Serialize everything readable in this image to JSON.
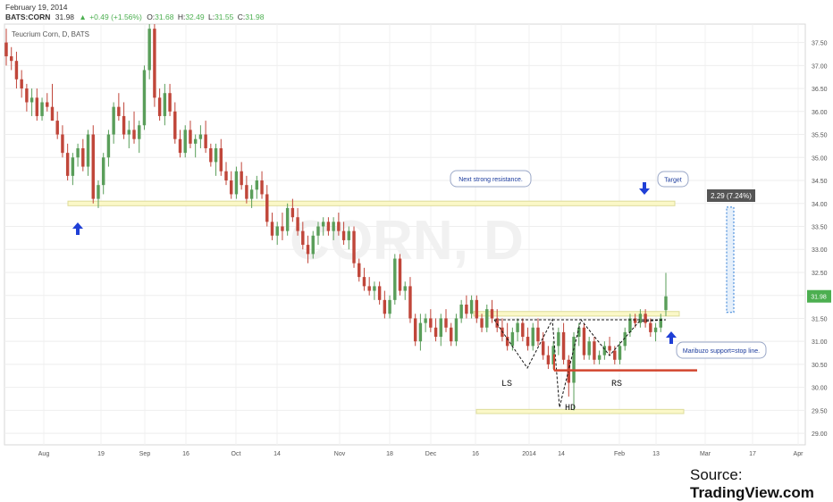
{
  "header": {
    "date": "February 19, 2014",
    "symbol": "BATS:CORN",
    "price": "31.98",
    "change_arrow": "▲",
    "change": "+0.49 (+1.56%)",
    "o_label": "O:",
    "o": "31.68",
    "h_label": "H:",
    "h": "32.49",
    "l_label": "L:",
    "l": "31.55",
    "c_label": "C:",
    "c": "31.98",
    "title": "Teucrium Corn, D, BATS"
  },
  "source": {
    "prefix": "Source: ",
    "brand": "TradingView.com"
  },
  "annotations": {
    "resistance_callout": "Next strong resistance.",
    "target_callout": "Target",
    "support_callout": "Maribuzo support=stop line.",
    "ls": "LS",
    "hd": "HD",
    "rs": "RS",
    "measure": "2.29 (7.24%)",
    "last_price": "31.98"
  },
  "colors": {
    "up": "#5a9e5a",
    "down": "#c0463a",
    "zone_fill": "#fbf8c8",
    "zone_stroke": "#dedc9a",
    "arrow": "#1f3fd6",
    "stop_line": "#d2462f",
    "measure": "#2a7ad6",
    "price_tag": "#4caf50"
  },
  "chart_data": {
    "type": "candlestick",
    "title": "Teucrium Corn, D, BATS",
    "ylim": [
      28.75,
      37.9
    ],
    "y_ticks": [
      "29.00",
      "29.50",
      "30.00",
      "30.50",
      "31.00",
      "31.50",
      "32.00",
      "32.50",
      "33.00",
      "33.50",
      "34.00",
      "34.50",
      "35.00",
      "35.50",
      "36.00",
      "36.50",
      "37.00",
      "37.50"
    ],
    "x_ticks": [
      "Aug",
      "19",
      "Sep",
      "16",
      "Oct",
      "14",
      "Nov",
      "18",
      "Dec",
      "16",
      "2014",
      "14",
      "Feb",
      "13",
      "Mar",
      "17",
      "Apr"
    ],
    "grid": true,
    "last_price": 31.98,
    "ohlc": [
      [
        37.5,
        37.8,
        37.0,
        37.2
      ],
      [
        37.2,
        37.4,
        36.9,
        37.1
      ],
      [
        37.1,
        37.3,
        36.5,
        36.7
      ],
      [
        36.7,
        36.9,
        36.3,
        36.5
      ],
      [
        36.5,
        36.6,
        36.0,
        36.2
      ],
      [
        36.2,
        36.5,
        35.9,
        36.3
      ],
      [
        36.3,
        36.5,
        35.8,
        35.9
      ],
      [
        35.9,
        36.3,
        35.8,
        36.2
      ],
      [
        36.2,
        36.4,
        36.0,
        36.1
      ],
      [
        36.1,
        36.6,
        35.8,
        35.8
      ],
      [
        35.8,
        36.0,
        35.4,
        35.5
      ],
      [
        35.5,
        35.7,
        35.0,
        35.1
      ],
      [
        35.1,
        35.3,
        34.5,
        34.6
      ],
      [
        34.6,
        35.1,
        34.4,
        35.0
      ],
      [
        35.0,
        35.3,
        34.8,
        35.2
      ],
      [
        35.2,
        35.4,
        34.7,
        34.8
      ],
      [
        34.8,
        35.6,
        34.6,
        35.5
      ],
      [
        35.5,
        35.7,
        34.0,
        34.1
      ],
      [
        34.1,
        34.5,
        33.9,
        34.4
      ],
      [
        34.4,
        35.1,
        34.2,
        35.0
      ],
      [
        35.0,
        35.6,
        34.8,
        35.5
      ],
      [
        35.5,
        36.2,
        35.3,
        36.1
      ],
      [
        36.1,
        36.4,
        35.8,
        35.9
      ],
      [
        35.9,
        36.2,
        35.4,
        35.5
      ],
      [
        35.5,
        35.8,
        35.2,
        35.6
      ],
      [
        35.6,
        36.0,
        35.3,
        35.4
      ],
      [
        35.4,
        35.8,
        35.1,
        35.7
      ],
      [
        35.7,
        37.0,
        35.6,
        36.9
      ],
      [
        36.9,
        37.9,
        36.7,
        37.8
      ],
      [
        37.8,
        37.9,
        36.1,
        36.3
      ],
      [
        36.3,
        36.5,
        35.8,
        35.9
      ],
      [
        35.9,
        36.6,
        35.7,
        36.4
      ],
      [
        36.4,
        36.6,
        35.9,
        36.0
      ],
      [
        36.0,
        36.2,
        35.3,
        35.4
      ],
      [
        35.4,
        35.6,
        35.0,
        35.1
      ],
      [
        35.1,
        35.7,
        35.0,
        35.6
      ],
      [
        35.6,
        35.8,
        35.2,
        35.3
      ],
      [
        35.3,
        35.5,
        35.0,
        35.4
      ],
      [
        35.4,
        35.7,
        35.2,
        35.5
      ],
      [
        35.5,
        35.8,
        35.1,
        35.2
      ],
      [
        35.2,
        35.3,
        34.8,
        34.9
      ],
      [
        34.9,
        35.3,
        34.6,
        35.2
      ],
      [
        35.2,
        35.4,
        34.6,
        34.7
      ],
      [
        34.7,
        34.9,
        34.4,
        34.5
      ],
      [
        34.5,
        34.7,
        34.1,
        34.2
      ],
      [
        34.2,
        34.8,
        34.1,
        34.7
      ],
      [
        34.7,
        34.9,
        34.3,
        34.4
      ],
      [
        34.4,
        34.6,
        34.0,
        34.1
      ],
      [
        34.1,
        34.4,
        33.9,
        34.3
      ],
      [
        34.3,
        34.6,
        34.1,
        34.5
      ],
      [
        34.5,
        34.7,
        34.1,
        34.2
      ],
      [
        34.2,
        34.4,
        33.5,
        33.6
      ],
      [
        33.6,
        33.8,
        33.2,
        33.3
      ],
      [
        33.3,
        33.6,
        33.1,
        33.5
      ],
      [
        33.5,
        33.8,
        33.2,
        33.4
      ],
      [
        33.4,
        34.0,
        33.3,
        33.9
      ],
      [
        33.9,
        34.1,
        33.6,
        33.7
      ],
      [
        33.7,
        33.9,
        33.3,
        33.4
      ],
      [
        33.4,
        33.6,
        33.0,
        33.1
      ],
      [
        33.1,
        33.3,
        32.7,
        32.9
      ],
      [
        32.9,
        33.4,
        32.8,
        33.3
      ],
      [
        33.3,
        33.6,
        33.1,
        33.5
      ],
      [
        33.5,
        33.7,
        33.3,
        33.6
      ],
      [
        33.6,
        33.7,
        33.3,
        33.4
      ],
      [
        33.4,
        33.7,
        33.2,
        33.6
      ],
      [
        33.6,
        33.8,
        33.3,
        33.4
      ],
      [
        33.4,
        33.6,
        33.1,
        33.2
      ],
      [
        33.2,
        33.5,
        33.0,
        33.4
      ],
      [
        33.4,
        33.5,
        32.6,
        32.7
      ],
      [
        32.7,
        32.8,
        32.3,
        32.4
      ],
      [
        32.4,
        32.6,
        32.1,
        32.2
      ],
      [
        32.2,
        32.4,
        32.0,
        32.1
      ],
      [
        32.1,
        32.3,
        31.9,
        32.2
      ],
      [
        32.2,
        32.3,
        31.8,
        31.9
      ],
      [
        31.9,
        32.1,
        31.5,
        31.6
      ],
      [
        31.6,
        32.0,
        31.5,
        31.9
      ],
      [
        31.9,
        32.9,
        31.8,
        32.8
      ],
      [
        32.8,
        32.9,
        32.0,
        32.1
      ],
      [
        32.1,
        32.3,
        31.9,
        32.2
      ],
      [
        32.2,
        32.4,
        31.4,
        31.5
      ],
      [
        31.5,
        31.6,
        30.9,
        31.0
      ],
      [
        31.0,
        31.6,
        30.8,
        31.4
      ],
      [
        31.4,
        31.6,
        31.2,
        31.5
      ],
      [
        31.5,
        31.7,
        31.2,
        31.3
      ],
      [
        31.3,
        31.5,
        31.0,
        31.1
      ],
      [
        31.1,
        31.6,
        30.9,
        31.5
      ],
      [
        31.5,
        31.7,
        31.2,
        31.3
      ],
      [
        31.3,
        31.4,
        30.9,
        31.0
      ],
      [
        31.0,
        31.6,
        30.9,
        31.5
      ],
      [
        31.5,
        31.9,
        31.4,
        31.8
      ],
      [
        31.8,
        32.0,
        31.5,
        31.6
      ],
      [
        31.6,
        32.0,
        31.5,
        31.9
      ],
      [
        31.9,
        32.0,
        31.4,
        31.5
      ],
      [
        31.5,
        31.6,
        31.2,
        31.3
      ],
      [
        31.3,
        31.8,
        31.2,
        31.7
      ],
      [
        31.7,
        31.9,
        31.4,
        31.5
      ],
      [
        31.5,
        31.7,
        31.2,
        31.3
      ],
      [
        31.3,
        31.5,
        31.0,
        31.1
      ],
      [
        31.1,
        31.4,
        30.8,
        30.9
      ],
      [
        30.9,
        31.3,
        30.8,
        31.2
      ],
      [
        31.2,
        31.5,
        31.0,
        31.4
      ],
      [
        31.4,
        31.5,
        31.0,
        31.1
      ],
      [
        31.1,
        31.3,
        30.8,
        30.9
      ],
      [
        30.9,
        31.4,
        30.8,
        31.3
      ],
      [
        31.3,
        31.5,
        30.9,
        31.0
      ],
      [
        31.0,
        31.2,
        30.6,
        30.7
      ],
      [
        30.7,
        30.9,
        30.4,
        30.5
      ],
      [
        30.5,
        31.0,
        30.4,
        30.9
      ],
      [
        30.9,
        31.3,
        30.7,
        31.2
      ],
      [
        31.2,
        31.4,
        30.5,
        30.6
      ],
      [
        30.6,
        30.7,
        29.8,
        30.1
      ],
      [
        30.1,
        31.2,
        29.5,
        31.1
      ],
      [
        31.1,
        31.4,
        30.9,
        31.3
      ],
      [
        31.3,
        31.4,
        30.6,
        30.7
      ],
      [
        30.7,
        31.1,
        30.6,
        31.0
      ],
      [
        31.0,
        31.1,
        30.5,
        30.6
      ],
      [
        30.6,
        30.8,
        30.5,
        30.7
      ],
      [
        30.7,
        31.0,
        30.6,
        30.9
      ],
      [
        30.9,
        31.1,
        30.7,
        30.8
      ],
      [
        30.8,
        30.9,
        30.5,
        30.6
      ],
      [
        30.6,
        31.0,
        30.5,
        30.9
      ],
      [
        30.9,
        31.3,
        30.8,
        31.2
      ],
      [
        31.2,
        31.6,
        31.1,
        31.5
      ],
      [
        31.5,
        31.6,
        31.3,
        31.4
      ],
      [
        31.4,
        31.7,
        31.3,
        31.6
      ],
      [
        31.6,
        31.7,
        31.3,
        31.4
      ],
      [
        31.4,
        31.5,
        31.1,
        31.2
      ],
      [
        31.2,
        31.4,
        31.0,
        31.3
      ],
      [
        31.3,
        31.6,
        31.2,
        31.5
      ],
      [
        31.68,
        32.49,
        31.55,
        31.98
      ]
    ]
  }
}
